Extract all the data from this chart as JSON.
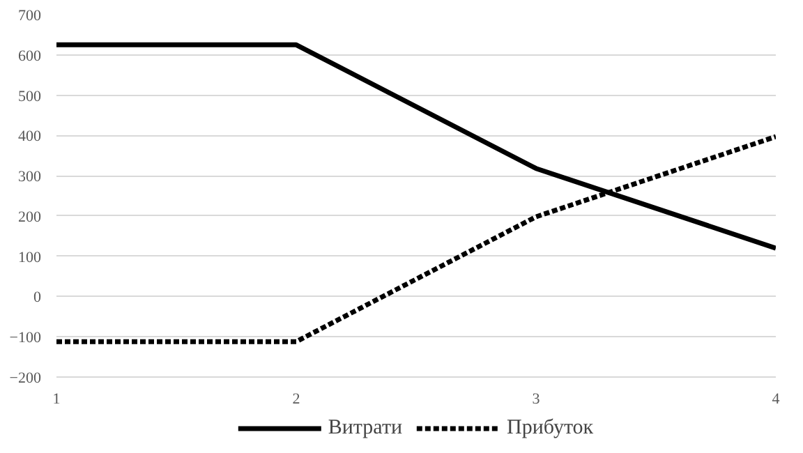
{
  "chart_data": {
    "type": "line",
    "x": [
      1,
      2,
      3,
      4
    ],
    "series": [
      {
        "name": "Витрати",
        "color": "#000000",
        "values": [
          625,
          625,
          318,
          120
        ],
        "line_style": "solid"
      },
      {
        "name": "Прибуток",
        "color": "#000000",
        "values": [
          -112,
          -112,
          198,
          397
        ],
        "line_style": "dashed"
      }
    ],
    "xlim": [
      1,
      4
    ],
    "xticks": [
      1,
      2,
      3,
      4
    ],
    "ylim": [
      -200,
      700
    ],
    "yticks": [
      -200,
      -100,
      0,
      100,
      200,
      300,
      400,
      500,
      600,
      700
    ],
    "grid": "y",
    "legend": "bottom",
    "marker": "none"
  }
}
